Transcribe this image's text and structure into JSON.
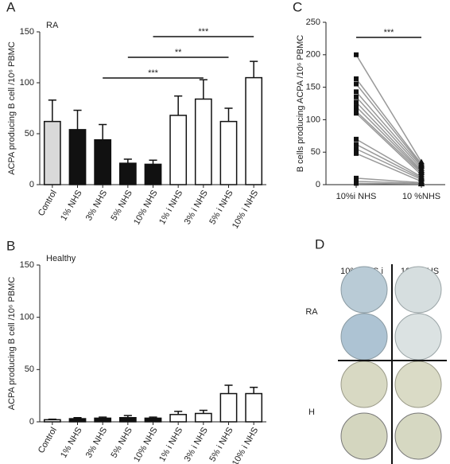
{
  "chart_data": [
    {
      "type": "bar",
      "panel": "A",
      "subtitle": "RA",
      "ylabel": "ACPA producing B cell /10⁶ PBMC",
      "categories": [
        "Control",
        "1% NHS",
        "3% NHS",
        "5% NHS",
        "10% NHS",
        "1% i NHS",
        "3% i NHS",
        "5% i NHS",
        "10% i NHS"
      ],
      "values": [
        62,
        54,
        44,
        21,
        20,
        68,
        84,
        62,
        105
      ],
      "errors": [
        21,
        19,
        15,
        4,
        4,
        19,
        19,
        13,
        16
      ],
      "colors": [
        "#d9d9d9",
        "#111111",
        "#111111",
        "#111111",
        "#111111",
        "#ffffff",
        "#ffffff",
        "#ffffff",
        "#ffffff"
      ],
      "ylim": [
        0,
        150
      ],
      "yticks": [
        0,
        50,
        100,
        150
      ],
      "annotations": [
        "***",
        "**",
        "***"
      ]
    },
    {
      "type": "bar",
      "panel": "B",
      "subtitle": "Healthy",
      "ylabel": "ACPA producing B cell /10⁶ PBMC",
      "categories": [
        "Control",
        "1% NHS",
        "3% NHS",
        "5% NHS",
        "10% NHS",
        "1% i NHS",
        "3% i NHS",
        "5% i NHS",
        "10% i NHS"
      ],
      "values": [
        2,
        3,
        3.5,
        4,
        3.5,
        7,
        8,
        27,
        27
      ],
      "errors": [
        0.5,
        1,
        1,
        2,
        1,
        3,
        3,
        8,
        6
      ],
      "colors": [
        "#ffffff",
        "#111111",
        "#111111",
        "#111111",
        "#111111",
        "#ffffff",
        "#ffffff",
        "#ffffff",
        "#ffffff"
      ],
      "ylim": [
        0,
        150
      ],
      "yticks": [
        0,
        50,
        100,
        150
      ]
    },
    {
      "type": "paired",
      "panel": "C",
      "ylabel": "B cells producing ACPA /10⁶ PBMC",
      "categories": [
        "10%i NHS",
        "10 %NHS"
      ],
      "color": "#999999",
      "series": [
        {
          "values": [
            200,
            35
          ]
        },
        {
          "values": [
            163,
            32
          ]
        },
        {
          "values": [
            155,
            30
          ]
        },
        {
          "values": [
            143,
            28
          ]
        },
        {
          "values": [
            135,
            25
          ]
        },
        {
          "values": [
            127,
            22
          ]
        },
        {
          "values": [
            120,
            20
          ]
        },
        {
          "values": [
            113,
            18
          ]
        },
        {
          "values": [
            110,
            15
          ]
        },
        {
          "values": [
            70,
            12
          ]
        },
        {
          "values": [
            62,
            10
          ]
        },
        {
          "values": [
            55,
            8
          ]
        },
        {
          "values": [
            48,
            5
          ]
        },
        {
          "values": [
            10,
            3
          ]
        },
        {
          "values": [
            5,
            2
          ]
        },
        {
          "values": [
            2,
            1
          ]
        }
      ],
      "ylim": [
        0,
        250
      ],
      "yticks": [
        0,
        50,
        100,
        150,
        200,
        250
      ],
      "annotations": [
        "***"
      ]
    }
  ],
  "panel_d": {
    "panel": "D",
    "columns": [
      "10% NHS i",
      "10% NHS"
    ],
    "rows": [
      "RA",
      "H"
    ]
  }
}
